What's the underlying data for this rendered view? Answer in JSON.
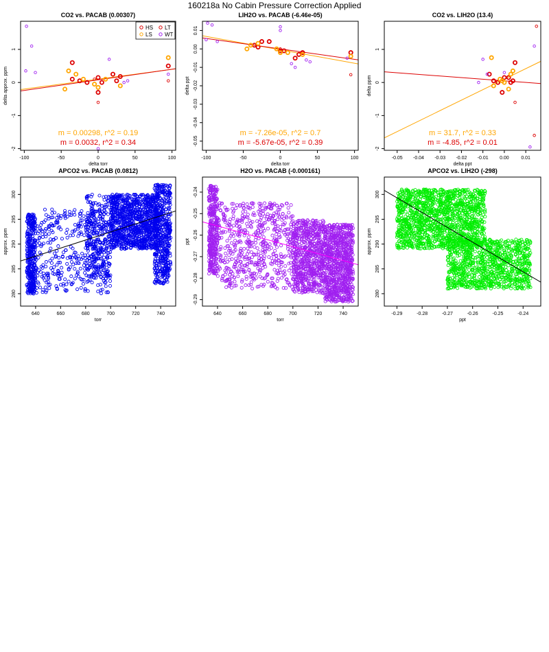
{
  "page": {
    "title": "160218a   No Cabin Pressure Correction Applied"
  },
  "chart_data": [
    {
      "id": "co2-pacab",
      "type": "scatter",
      "title": "CO2 vs. PACAB (0.00307)",
      "xlabel": "delta torr",
      "ylabel": "delta approx. ppm",
      "xlim": [
        -105,
        105
      ],
      "ylim": [
        -2.05,
        1.85
      ],
      "xticks": [
        -100,
        -50,
        0,
        50,
        100
      ],
      "yticks": [
        -2,
        -1,
        0,
        1
      ],
      "legend": {
        "position": "top-right",
        "entries": [
          {
            "label": "HS",
            "color": "#dd0000"
          },
          {
            "label": "LT",
            "color": "#dd0000"
          },
          {
            "label": "LS",
            "color": "#ffa500"
          },
          {
            "label": "WT",
            "color": "#a020f0"
          }
        ]
      },
      "series": [
        {
          "name": "HS",
          "color": "#dd0000",
          "bold": true,
          "points": [
            [
              -35,
              0.6
            ],
            [
              -25,
              0.05
            ],
            [
              -15,
              0.0
            ],
            [
              0,
              0.15
            ],
            [
              0,
              -0.3
            ],
            [
              5,
              0.0
            ],
            [
              20,
              0.25
            ],
            [
              25,
              0.05
            ],
            [
              30,
              0.18
            ],
            [
              95,
              0.5
            ],
            [
              -35,
              0.1
            ]
          ]
        },
        {
          "name": "LS",
          "color": "#ffa500",
          "bold": true,
          "points": [
            [
              -45,
              -0.2
            ],
            [
              -40,
              0.35
            ],
            [
              -30,
              0.25
            ],
            [
              -5,
              -0.05
            ],
            [
              0,
              -0.15
            ],
            [
              10,
              0.1
            ],
            [
              30,
              -0.1
            ],
            [
              95,
              0.75
            ],
            [
              -20,
              0.1
            ]
          ]
        },
        {
          "name": "LT",
          "color": "#dd0000",
          "bold": false,
          "points": [
            [
              0,
              -0.6
            ],
            [
              95,
              0.05
            ],
            [
              -5,
              0.1
            ]
          ]
        },
        {
          "name": "WT",
          "color": "#a020f0",
          "bold": false,
          "points": [
            [
              -97,
              1.7
            ],
            [
              -90,
              1.1
            ],
            [
              -85,
              0.3
            ],
            [
              -98,
              0.35
            ],
            [
              15,
              0.7
            ],
            [
              40,
              0.05
            ],
            [
              95,
              0.25
            ],
            [
              0,
              -2.0
            ],
            [
              35,
              0.0
            ]
          ]
        }
      ],
      "fits": [
        {
          "color": "#ffa500",
          "slope": 0.00298,
          "intercept": 0.1
        },
        {
          "color": "#dd0000",
          "slope": 0.0032,
          "intercept": 0.08
        }
      ],
      "annotations": [
        {
          "text": "m = 0.00298, r^2 = 0.19",
          "color": "#ffa500"
        },
        {
          "text": "m = 0.0032, r^2 = 0.34",
          "color": "#dd0000"
        }
      ]
    },
    {
      "id": "lih2o-pacab",
      "type": "scatter",
      "title": "LIH2O vs. PACAB (-6.46e-05)",
      "xlabel": "delta torr",
      "ylabel": "delta ppt",
      "xlim": [
        -105,
        105
      ],
      "ylim": [
        -0.055,
        0.015
      ],
      "xticks": [
        -100,
        -50,
        0,
        50,
        100
      ],
      "yticks": [
        0.01,
        0.0,
        -0.01,
        -0.02,
        -0.03,
        -0.04,
        -0.05
      ],
      "ytick_labels": [
        "0.01",
        "0.00",
        "-0.01",
        "-0.02",
        "-0.03",
        "-0.04",
        "-0.05"
      ],
      "series": [
        {
          "name": "HS",
          "color": "#dd0000",
          "bold": true,
          "points": [
            [
              -35,
              0.002
            ],
            [
              -25,
              0.004
            ],
            [
              -15,
              0.004
            ],
            [
              0,
              -0.001
            ],
            [
              5,
              -0.001
            ],
            [
              20,
              -0.005
            ],
            [
              25,
              -0.003
            ],
            [
              30,
              -0.002
            ],
            [
              95,
              -0.002
            ],
            [
              -30,
              0.001
            ]
          ]
        },
        {
          "name": "LS",
          "color": "#ffa500",
          "bold": true,
          "points": [
            [
              -45,
              0.0
            ],
            [
              -40,
              0.002
            ],
            [
              -30,
              0.003
            ],
            [
              -5,
              0.0
            ],
            [
              0,
              -0.002
            ],
            [
              10,
              -0.002
            ],
            [
              30,
              -0.003
            ],
            [
              95,
              -0.004
            ]
          ]
        },
        {
          "name": "LT",
          "color": "#dd0000",
          "bold": false,
          "points": [
            [
              95,
              -0.014
            ],
            [
              0,
              0.0
            ]
          ]
        },
        {
          "name": "WT",
          "color": "#a020f0",
          "bold": false,
          "points": [
            [
              -98,
              0.014
            ],
            [
              -92,
              0.013
            ],
            [
              -85,
              0.004
            ],
            [
              -100,
              0.005
            ],
            [
              0,
              0.012
            ],
            [
              0,
              0.01
            ],
            [
              15,
              -0.008
            ],
            [
              20,
              -0.01
            ],
            [
              35,
              -0.006
            ],
            [
              40,
              -0.007
            ],
            [
              90,
              -0.005
            ]
          ]
        }
      ],
      "fits": [
        {
          "color": "#ffa500",
          "slope": -7.26e-05,
          "intercept": -0.0005
        },
        {
          "color": "#dd0000",
          "slope": -5.67e-05,
          "intercept": 0.0
        }
      ],
      "annotations": [
        {
          "text": "m = -7.26e-05, r^2 = 0.7",
          "color": "#ffa500"
        },
        {
          "text": "m = -5.67e-05, r^2 = 0.39",
          "color": "#dd0000"
        }
      ]
    },
    {
      "id": "co2-lih2o",
      "type": "scatter",
      "title": "CO2 vs. LIH2O (13.4)",
      "xlabel": "delta ppt",
      "ylabel": "delta ppm",
      "xlim": [
        -0.056,
        0.017
      ],
      "ylim": [
        -2.05,
        1.85
      ],
      "xticks": [
        -0.05,
        -0.04,
        -0.03,
        -0.02,
        -0.01,
        0.0,
        0.01
      ],
      "xtick_labels": [
        "-0.05",
        "-0.04",
        "-0.03",
        "-0.02",
        "-0.01",
        "0.00",
        "0.01"
      ],
      "yticks": [
        -2,
        -1,
        0,
        1
      ],
      "series": [
        {
          "name": "HS",
          "color": "#dd0000",
          "bold": true,
          "points": [
            [
              -0.007,
              0.25
            ],
            [
              -0.005,
              0.05
            ],
            [
              -0.003,
              0.0
            ],
            [
              0.0,
              0.15
            ],
            [
              -0.001,
              -0.3
            ],
            [
              0.002,
              0.15
            ],
            [
              0.004,
              0.05
            ],
            [
              0.005,
              0.6
            ],
            [
              0.003,
              0.0
            ]
          ]
        },
        {
          "name": "LS",
          "color": "#ffa500",
          "bold": true,
          "points": [
            [
              -0.006,
              0.75
            ],
            [
              -0.005,
              -0.1
            ],
            [
              -0.002,
              0.1
            ],
            [
              0.0,
              0.0
            ],
            [
              0.002,
              -0.2
            ],
            [
              0.004,
              0.35
            ],
            [
              0.003,
              0.25
            ],
            [
              -0.001,
              0.05
            ]
          ]
        },
        {
          "name": "LT",
          "color": "#dd0000",
          "bold": false,
          "points": [
            [
              0.014,
              -1.6
            ],
            [
              0.015,
              1.7
            ],
            [
              0.005,
              -0.6
            ]
          ]
        },
        {
          "name": "WT",
          "color": "#a020f0",
          "bold": false,
          "points": [
            [
              -0.012,
              0.0
            ],
            [
              -0.01,
              0.7
            ],
            [
              0.012,
              -1.95
            ],
            [
              0.0,
              0.3
            ],
            [
              -0.008,
              0.25
            ],
            [
              0.014,
              1.1
            ]
          ]
        }
      ],
      "fits": [
        {
          "color": "#ffa500",
          "slope": 31.7,
          "intercept": 0.1
        },
        {
          "color": "#dd0000",
          "slope": -4.85,
          "intercept": 0.05
        }
      ],
      "annotations": [
        {
          "text": "m = 31.7, r^2 = 0.33",
          "color": "#ffa500"
        },
        {
          "text": "m = -4.85, r^2 = 0.01",
          "color": "#dd0000"
        }
      ]
    },
    {
      "id": "apco2-pacab",
      "type": "scatter",
      "title": "APCO2 vs. PACAB (0.0812)",
      "xlabel": "torr",
      "ylabel": "approx. ppm",
      "xlim": [
        628,
        752
      ],
      "ylim": [
        277.5,
        303.5
      ],
      "xticks": [
        640,
        660,
        680,
        700,
        720,
        740
      ],
      "yticks": [
        280,
        285,
        290,
        295,
        300
      ],
      "color": "#0000ee",
      "clusters": [
        {
          "xmin": 633,
          "xmax": 640,
          "ymin": 280,
          "ymax": 296,
          "n": 350
        },
        {
          "xmin": 640,
          "xmax": 700,
          "ymin": 280,
          "ymax": 297,
          "n": 400
        },
        {
          "xmin": 680,
          "xmax": 700,
          "ymin": 283,
          "ymax": 300,
          "n": 250
        },
        {
          "xmin": 700,
          "xmax": 738,
          "ymin": 289,
          "ymax": 300,
          "n": 1100
        },
        {
          "xmin": 735,
          "xmax": 748,
          "ymin": 282,
          "ymax": 302,
          "n": 500
        }
      ],
      "fit": {
        "color": "#000000",
        "slope": 0.0812,
        "intercept": 235.6
      }
    },
    {
      "id": "h2o-pacab",
      "type": "scatter",
      "title": "H2O vs. PACAB (-0.000161)",
      "xlabel": "torr",
      "ylabel": "ppt",
      "xlim": [
        628,
        752
      ],
      "ylim": [
        -0.293,
        -0.233
      ],
      "xticks": [
        640,
        660,
        680,
        700,
        720,
        740
      ],
      "yticks": [
        -0.24,
        -0.25,
        -0.26,
        -0.27,
        -0.28,
        -0.29
      ],
      "ytick_labels": [
        "-0.24",
        "-0.25",
        "-0.26",
        "-0.27",
        "-0.28",
        "-0.29"
      ],
      "color": "#a020f0",
      "clusters": [
        {
          "xmin": 633,
          "xmax": 640,
          "ymin": -0.278,
          "ymax": -0.237,
          "n": 350
        },
        {
          "xmin": 640,
          "xmax": 700,
          "ymin": -0.285,
          "ymax": -0.245,
          "n": 600
        },
        {
          "xmin": 700,
          "xmax": 725,
          "ymin": -0.287,
          "ymax": -0.253,
          "n": 700
        },
        {
          "xmin": 725,
          "xmax": 748,
          "ymin": -0.291,
          "ymax": -0.255,
          "n": 900
        }
      ],
      "fit": {
        "color": "#ff00ff",
        "slope": -0.000161,
        "intercept": -0.1527
      }
    },
    {
      "id": "apco2-lih2o",
      "type": "scatter",
      "title": "APCO2 vs. LIH2O (-298)",
      "xlabel": "ppt",
      "ylabel": "approx. ppm",
      "xlim": [
        -0.295,
        -0.233
      ],
      "ylim": [
        277.5,
        303.5
      ],
      "xticks": [
        -0.29,
        -0.28,
        -0.27,
        -0.26,
        -0.25,
        -0.24
      ],
      "xtick_labels": [
        "-0.29",
        "-0.28",
        "-0.27",
        "-0.26",
        "-0.25",
        "-0.24"
      ],
      "yticks": [
        280,
        285,
        290,
        295,
        300
      ],
      "color": "#00ee00",
      "clusters": [
        {
          "xmin": -0.29,
          "xmax": -0.255,
          "ymin": 289,
          "ymax": 301,
          "n": 1400
        },
        {
          "xmin": -0.27,
          "xmax": -0.237,
          "ymin": 281,
          "ymax": 291,
          "n": 1000
        }
      ],
      "fit": {
        "color": "#000000",
        "slope": -298,
        "intercept": 212.9
      }
    }
  ]
}
